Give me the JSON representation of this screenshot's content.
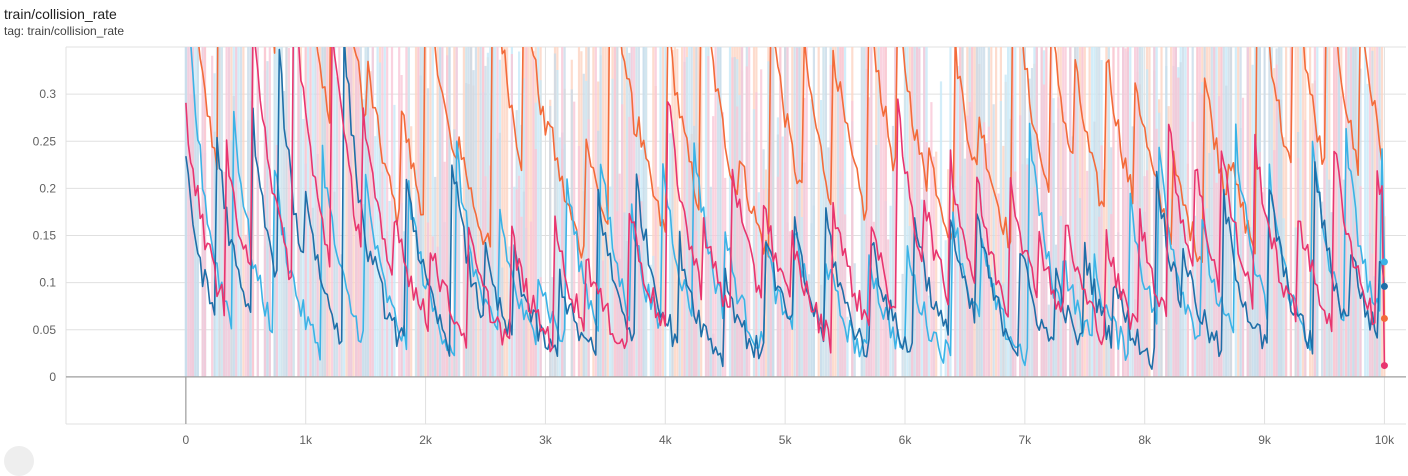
{
  "card": {
    "title": "train/collision_rate",
    "tag": "tag: train/collision_rate"
  },
  "chart_data": {
    "type": "line",
    "title": "train/collision_rate",
    "xlabel": "",
    "ylabel": "",
    "xlim": [
      -1000,
      10180
    ],
    "ylim": [
      -0.05,
      0.35
    ],
    "y_ticks": [
      0,
      0.05,
      0.1,
      0.15,
      0.2,
      0.25,
      0.3
    ],
    "y_tick_labels": [
      "0",
      "0.05",
      "0.1",
      "0.15",
      "0.2",
      "0.25",
      "0.3"
    ],
    "x_ticks": [
      0,
      1000,
      2000,
      3000,
      4000,
      5000,
      6000,
      7000,
      8000,
      9000,
      10000
    ],
    "x_tick_labels": [
      "0",
      "1k",
      "2k",
      "3k",
      "4k",
      "5k",
      "6k",
      "7k",
      "8k",
      "9k",
      "10k"
    ],
    "grid": true,
    "legend": "none",
    "series": [
      {
        "color": "#f36b3a",
        "light": "#fcd3c2",
        "final": 0.062
      },
      {
        "color": "#3bb3e6",
        "light": "#c7e9f7",
        "final": 0.122
      },
      {
        "color": "#1f6fa8",
        "light": "#c9dbe9",
        "final": 0.096
      },
      {
        "color": "#e8356f",
        "light": "#f9c7d7",
        "final": 0.012
      }
    ]
  }
}
